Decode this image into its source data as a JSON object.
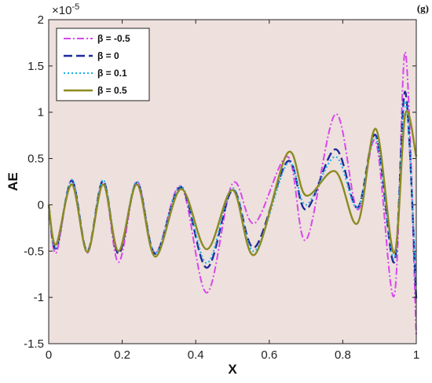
{
  "panel_label": "(g)",
  "chart_data": {
    "type": "line",
    "xlabel": "X",
    "ylabel": "AE",
    "y_multiplier": "×10",
    "y_multiplier_exp": "-5",
    "xlim": [
      0,
      1
    ],
    "ylim": [
      -1.5,
      2
    ],
    "xticks": [
      0,
      0.2,
      0.4,
      0.6,
      0.8,
      1
    ],
    "xtick_labels": [
      "0",
      "0.2",
      "0.4",
      "0.6",
      "0.8",
      "1"
    ],
    "yticks": [
      -1.5,
      -1,
      -0.5,
      0,
      0.5,
      1,
      1.5,
      2
    ],
    "ytick_labels": [
      "-1.5",
      "-1",
      "-0.5",
      "0",
      "0.5",
      "1",
      "1.5",
      "2"
    ],
    "grid": false,
    "legend_position": "top-left",
    "background": "#ede0dd",
    "x": [
      0,
      0.02,
      0.063,
      0.105,
      0.148,
      0.19,
      0.24,
      0.29,
      0.36,
      0.43,
      0.5,
      0.56,
      0.65,
      0.7,
      0.78,
      0.84,
      0.89,
      0.94,
      0.97,
      1.0
    ],
    "series": [
      {
        "name": "β = -0.5",
        "color": "#d946ef",
        "dash": "9,3,2,3",
        "width": 2,
        "values": [
          0.0,
          -0.52,
          0.27,
          -0.52,
          0.25,
          -0.62,
          0.25,
          -0.52,
          0.2,
          -0.95,
          0.23,
          -0.2,
          0.52,
          -0.38,
          0.98,
          -0.05,
          0.68,
          -0.98,
          1.65,
          -1.42
        ]
      },
      {
        "name": "β = 0",
        "color": "#1e2a9a",
        "dash": "11,5",
        "width": 2.4,
        "values": [
          0.0,
          -0.47,
          0.26,
          -0.5,
          0.26,
          -0.53,
          0.24,
          -0.53,
          0.19,
          -0.68,
          0.16,
          -0.46,
          0.47,
          -0.05,
          0.6,
          -0.03,
          0.75,
          -0.62,
          1.22,
          -1.02
        ]
      },
      {
        "name": "β = 0.1",
        "color": "#22b3e6",
        "dash": "2,3",
        "width": 2.2,
        "values": [
          0.0,
          -0.46,
          0.27,
          -0.5,
          0.27,
          -0.5,
          0.25,
          -0.52,
          0.2,
          -0.63,
          0.18,
          -0.5,
          0.45,
          0.0,
          0.52,
          -0.03,
          0.72,
          -0.58,
          1.12,
          -0.88
        ]
      },
      {
        "name": "β = 0.5",
        "color": "#8c8a21",
        "dash": "",
        "width": 2.4,
        "values": [
          0.0,
          -0.43,
          0.22,
          -0.51,
          0.22,
          -0.5,
          0.22,
          -0.56,
          0.17,
          -0.48,
          0.16,
          -0.54,
          0.56,
          0.1,
          0.36,
          -0.2,
          0.82,
          -0.52,
          0.98,
          0.52
        ]
      }
    ]
  }
}
